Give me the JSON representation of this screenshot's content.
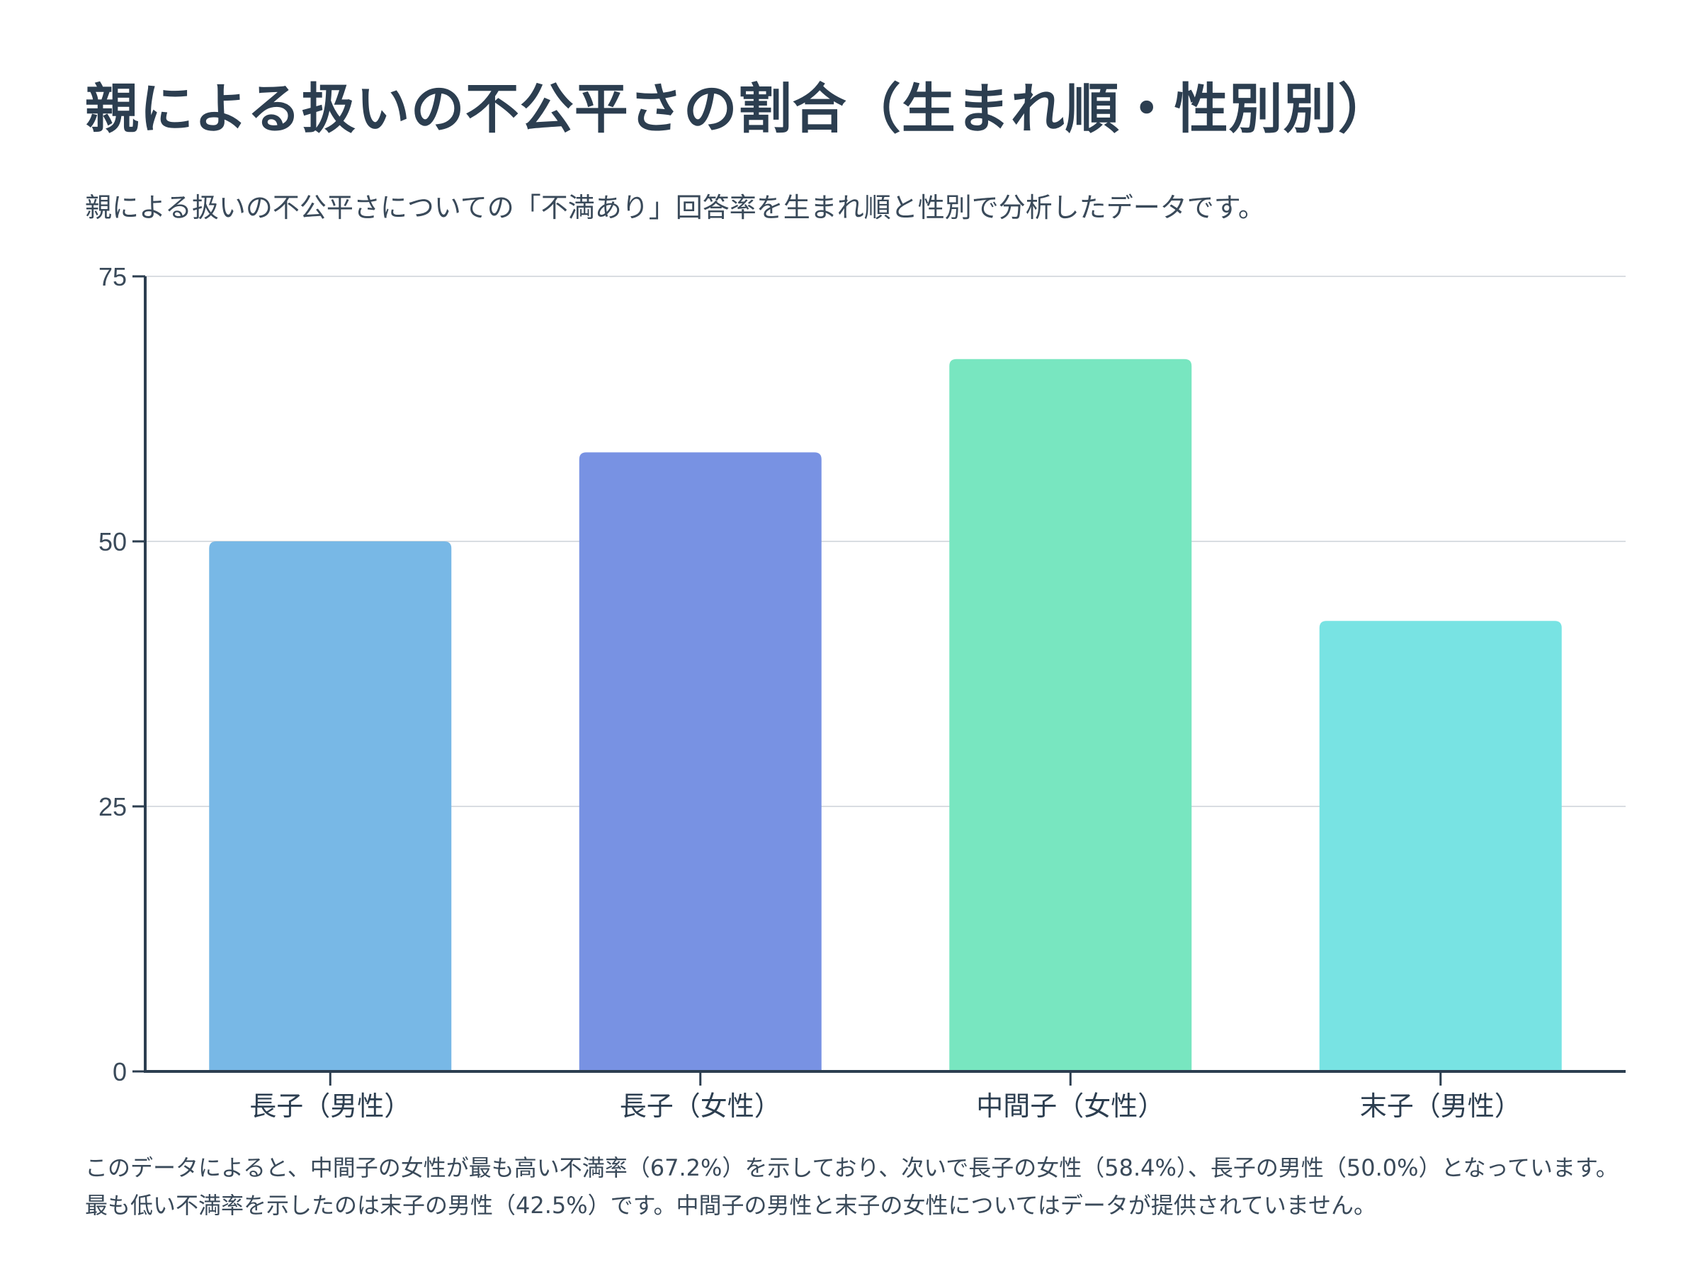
{
  "title": "親による扱いの不公平さの割合（生まれ順・性別別）",
  "subtitle": "親による扱いの不公平さについての「不満あり」回答率を生まれ順と性別で分析したデータです。",
  "footnote": "このデータによると、中間子の女性が最も高い不満率（67.2%）を示しており、次いで長子の女性（58.4%）、長子の男性（50.0%）となっています。最も低い不満率を示したのは末子の男性（42.5%）です。中間子の男性と末子の女性についてはデータが提供されていません。",
  "colors": {
    "axis": "#2c3e50",
    "grid": "#d9dde2",
    "text": "#2c3e50"
  },
  "chart_data": {
    "type": "bar",
    "title": "親による扱いの不公平さの割合（生まれ順・性別別）",
    "xlabel": "",
    "ylabel": "",
    "categories": [
      "長子（男性）",
      "長子（女性）",
      "中間子（女性）",
      "末子（男性）"
    ],
    "values": [
      50.0,
      58.4,
      67.2,
      42.5
    ],
    "bar_colors": [
      "#78b8e6",
      "#7892e3",
      "#78e6c0",
      "#78e3e3"
    ],
    "ylim": [
      0,
      75
    ],
    "yticks": [
      0,
      25,
      50,
      75
    ],
    "grid": true
  }
}
